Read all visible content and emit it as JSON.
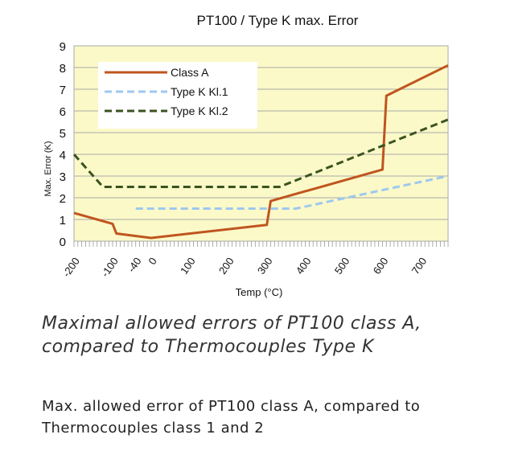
{
  "chart_data": {
    "type": "line",
    "title": "PT100 / Type K max. Error",
    "xlabel": "Temp (°C)",
    "ylabel": "Max. Error (K)",
    "xlim": [
      -200,
      770
    ],
    "ylim": [
      0,
      9
    ],
    "x_ticks": [
      -200,
      -100,
      -40,
      0,
      100,
      200,
      300,
      400,
      500,
      600,
      700
    ],
    "y_ticks": [
      0,
      1,
      2,
      3,
      4,
      5,
      6,
      7,
      8,
      9
    ],
    "grid": true,
    "legend": "top-left",
    "background": "#fbf9c8",
    "series": [
      {
        "name": "Class A",
        "color": "#c0551f",
        "dash": "solid",
        "points": [
          [
            -200,
            1.3
          ],
          [
            -100,
            0.8
          ],
          [
            -90,
            0.35
          ],
          [
            0,
            0.15
          ],
          [
            300,
            0.75
          ],
          [
            310,
            1.85
          ],
          [
            600,
            3.3
          ],
          [
            610,
            6.7
          ],
          [
            770,
            8.1
          ]
        ]
      },
      {
        "name": "Type K Kl.1",
        "color": "#9ec8f0",
        "dash": "dashed",
        "points": [
          [
            -40,
            1.5
          ],
          [
            375,
            1.5
          ],
          [
            770,
            3.0
          ]
        ]
      },
      {
        "name": "Type K Kl.2",
        "color": "#3b5320",
        "dash": "dashed",
        "points": [
          [
            -200,
            4.0
          ],
          [
            -125,
            2.5
          ],
          [
            333,
            2.5
          ],
          [
            770,
            5.6
          ]
        ]
      }
    ]
  },
  "captions": {
    "italic": "Maximal allowed errors of PT100 class A, compared to Thermocouples Type K",
    "plain": "Max. allowed error of PT100 class A, compared to Thermocouples class 1 and 2"
  }
}
